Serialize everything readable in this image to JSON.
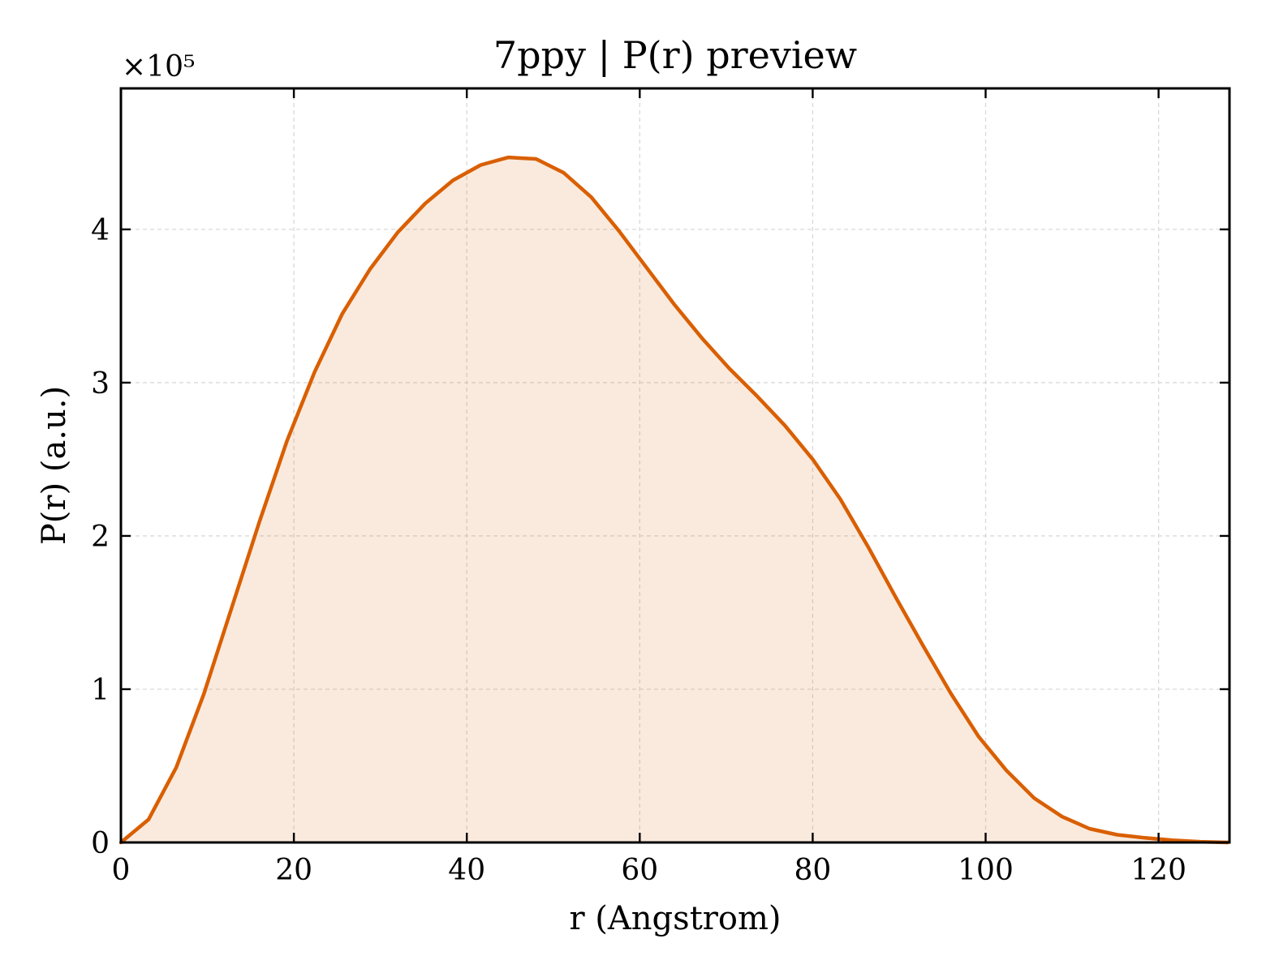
{
  "chart_data": {
    "type": "area",
    "title": "7ppy | P(r) preview",
    "xlabel": "r (Angstrom)",
    "ylabel": "P(r) (a.u.)",
    "y_multiplier": "×10⁵",
    "xlim": [
      0,
      128.2
    ],
    "ylim": [
      0,
      4.92
    ],
    "y_scale_note": "values in units of 10^5",
    "x_ticks": [
      0,
      20,
      40,
      60,
      80,
      100,
      120
    ],
    "x_tick_labels": [
      "0",
      "20",
      "40",
      "60",
      "80",
      "100",
      "120"
    ],
    "y_ticks": [
      0,
      1,
      2,
      3,
      4
    ],
    "y_tick_labels": [
      "0",
      "1",
      "2",
      "3",
      "4"
    ],
    "grid": true,
    "color": "#d95f02",
    "fill_color": "#d95f02",
    "fill_opacity": 0.13,
    "series": [
      {
        "x": [
          0,
          3.2,
          6.4,
          9.6,
          12.8,
          16.0,
          19.2,
          22.4,
          25.6,
          28.8,
          32.0,
          35.2,
          38.4,
          41.6,
          44.8,
          48.0,
          51.2,
          54.4,
          57.6,
          60.8,
          64.0,
          67.2,
          70.4,
          73.6,
          76.8,
          80.0,
          83.2,
          86.4,
          89.6,
          92.8,
          96.0,
          99.2,
          102.4,
          105.6,
          108.8,
          112.0,
          115.2,
          118.4,
          121.6,
          124.8,
          128.0
        ],
        "values": [
          0.0,
          0.15,
          0.49,
          0.97,
          1.53,
          2.09,
          2.62,
          3.07,
          3.45,
          3.74,
          3.98,
          4.17,
          4.32,
          4.42,
          4.47,
          4.46,
          4.37,
          4.21,
          3.99,
          3.75,
          3.51,
          3.29,
          3.09,
          2.91,
          2.72,
          2.5,
          2.24,
          1.93,
          1.6,
          1.28,
          0.97,
          0.69,
          0.47,
          0.29,
          0.17,
          0.09,
          0.05,
          0.03,
          0.015,
          0.005,
          0.0
        ]
      }
    ]
  }
}
